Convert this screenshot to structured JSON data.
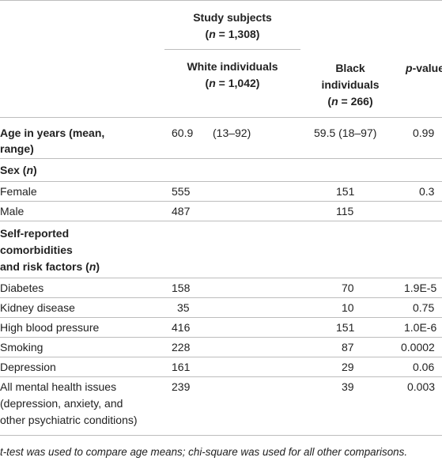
{
  "header": {
    "study_subjects": "Study subjects",
    "study_n_var": "n",
    "study_n_rest": " = 1,308)",
    "study_paren_open": "(",
    "white_label": "White individuals",
    "white_paren_open": "(",
    "white_n_var": "n",
    "white_n_rest": " = 1,042)",
    "black_line1": "Black",
    "black_line2": "individuals",
    "black_paren_open": "(",
    "black_n_var": "n",
    "black_n_rest": " = 266)",
    "pvalue_var": "p",
    "pvalue_rest": "-value"
  },
  "rows": {
    "age": {
      "label_line1": "Age in years (mean,",
      "label_line2": "range)",
      "white_mean": "60.9",
      "white_range": "(13–92)",
      "black": "59.5 (18–97)",
      "p": "0.99"
    },
    "sex_heading": {
      "label": "Sex (",
      "label_var": "n",
      "label_close": ")"
    },
    "female": {
      "label": "Female",
      "white": "555",
      "black": "151",
      "p": "0.3"
    },
    "male": {
      "label": "Male",
      "white": "487",
      "black": "115",
      "p": ""
    },
    "comorb_heading": {
      "line1": "Self-reported",
      "line2": "comorbidities",
      "line3": "and risk factors (",
      "line3_var": "n",
      "line3_close": ")"
    },
    "diabetes": {
      "label": "Diabetes",
      "white": "158",
      "black": "70",
      "p": "1.9E-5"
    },
    "kidney": {
      "label": "Kidney disease",
      "white": "35",
      "black": "10",
      "p": "0.75"
    },
    "hbp": {
      "label": "High blood pressure",
      "white": "416",
      "black": "151",
      "p": "1.0E-6"
    },
    "smoking": {
      "label": "Smoking",
      "white": "228",
      "black": "87",
      "p": "0.0002"
    },
    "depression": {
      "label": "Depression",
      "white": "161",
      "black": "29",
      "p": "0.06"
    },
    "mental": {
      "label_line1": "All mental health issues",
      "label_line2": "(depression, anxiety, and",
      "label_line3": "other psychiatric conditions)",
      "white": "239",
      "black": "39",
      "p": "0.003"
    }
  },
  "footnote": "t-test was used to compare age means; chi-square was used for all other comparisons."
}
